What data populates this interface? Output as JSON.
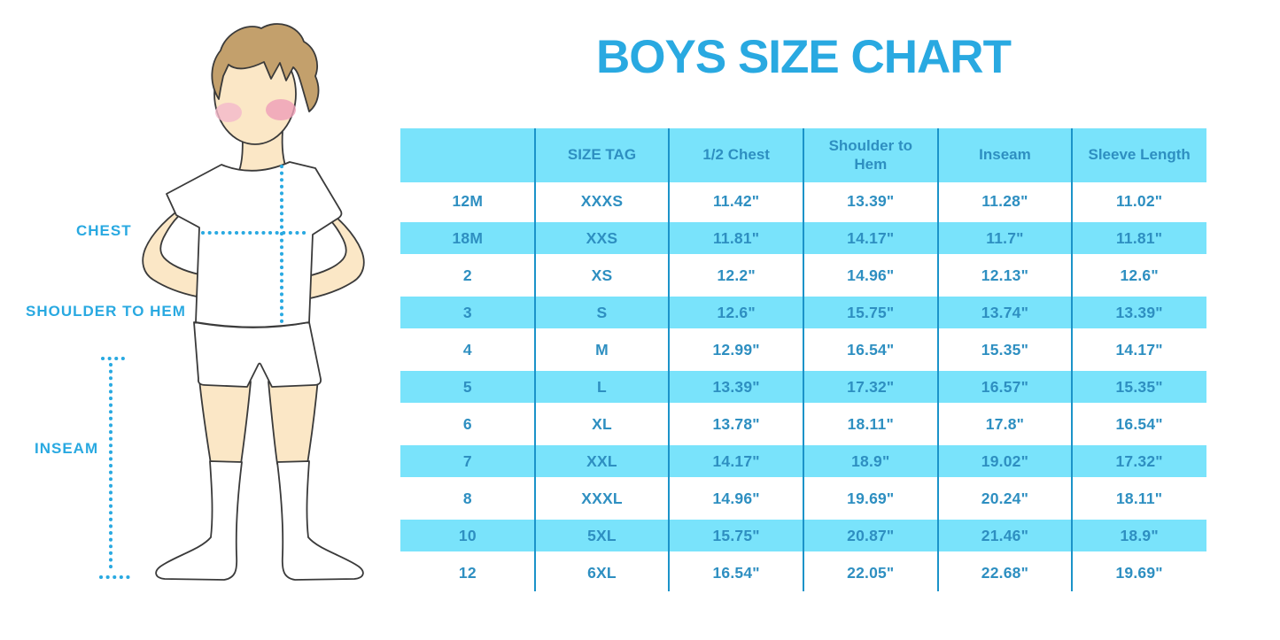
{
  "title": "BOYS SIZE CHART",
  "colors": {
    "accent_blue": "#29a9e1",
    "row_stripe_cyan": "#79e3fb",
    "table_text_blue": "#2e8fc1",
    "column_line_blue": "#1b93c9",
    "hair_brown": "#c3a06c",
    "skin": "#fbe7c6"
  },
  "figure": {
    "description": "boy-measurement-illustration",
    "labels": {
      "chest": "CHEST",
      "shoulder_to_hem": "SHOULDER TO HEM",
      "inseam": "INSEAM"
    }
  },
  "chart_data": {
    "type": "table",
    "title": "BOYS SIZE CHART",
    "columns": [
      "",
      "SIZE TAG",
      "1/2 Chest",
      "Shoulder to Hem",
      "Inseam",
      "Sleeve Length"
    ],
    "rows": [
      [
        "12M",
        "XXXS",
        "11.42\"",
        "13.39\"",
        "11.28\"",
        "11.02\""
      ],
      [
        "18M",
        "XXS",
        "11.81\"",
        "14.17\"",
        "11.7\"",
        "11.81\""
      ],
      [
        "2",
        "XS",
        "12.2\"",
        "14.96\"",
        "12.13\"",
        "12.6\""
      ],
      [
        "3",
        "S",
        "12.6\"",
        "15.75\"",
        "13.74\"",
        "13.39\""
      ],
      [
        "4",
        "M",
        "12.99\"",
        "16.54\"",
        "15.35\"",
        "14.17\""
      ],
      [
        "5",
        "L",
        "13.39\"",
        "17.32\"",
        "16.57\"",
        "15.35\""
      ],
      [
        "6",
        "XL",
        "13.78\"",
        "18.11\"",
        "17.8\"",
        "16.54\""
      ],
      [
        "7",
        "XXL",
        "14.17\"",
        "18.9\"",
        "19.02\"",
        "17.32\""
      ],
      [
        "8",
        "XXXL",
        "14.96\"",
        "19.69\"",
        "20.24\"",
        "18.11\""
      ],
      [
        "10",
        "5XL",
        "15.75\"",
        "20.87\"",
        "21.46\"",
        "18.9\""
      ],
      [
        "12",
        "6XL",
        "16.54\"",
        "22.05\"",
        "22.68\"",
        "19.69\""
      ]
    ],
    "striped_rows": "alternating white / light cyan, header cyan",
    "legend_position": "none",
    "grid": "vertical column dividers only"
  }
}
